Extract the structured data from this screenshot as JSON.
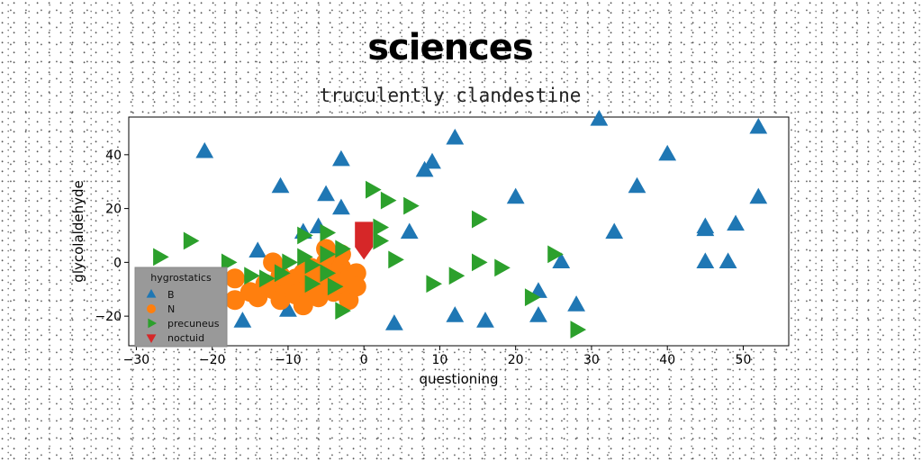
{
  "chart_data": {
    "type": "scatter",
    "title": "sciences",
    "subtitle": "truculently clandestine",
    "xlabel": "questioning",
    "ylabel": "glycolaldehyde",
    "xlim": [
      -31,
      56
    ],
    "ylim": [
      -31,
      54
    ],
    "xticks": [
      -30,
      -20,
      -10,
      0,
      10,
      20,
      30,
      40,
      50
    ],
    "yticks": [
      -20,
      0,
      20,
      40
    ],
    "grid": false,
    "legend": {
      "title": "hygrostatics",
      "position": "lower-left"
    },
    "series": [
      {
        "name": "B",
        "marker": "triangle-up",
        "color": "#1f77b4",
        "points": [
          [
            -21,
            41
          ],
          [
            -11,
            28
          ],
          [
            -8,
            11
          ],
          [
            -5,
            25
          ],
          [
            -6,
            13
          ],
          [
            -3,
            38
          ],
          [
            -3,
            20
          ],
          [
            -14,
            4
          ],
          [
            -16,
            -22
          ],
          [
            -10,
            -18
          ],
          [
            4,
            -23
          ],
          [
            6,
            11
          ],
          [
            8,
            34
          ],
          [
            9,
            37
          ],
          [
            12,
            46
          ],
          [
            12,
            -20
          ],
          [
            16,
            -22
          ],
          [
            20,
            24
          ],
          [
            23,
            -11
          ],
          [
            23,
            -20
          ],
          [
            26,
            0
          ],
          [
            28,
            -16
          ],
          [
            31,
            53
          ],
          [
            33,
            11
          ],
          [
            36,
            28
          ],
          [
            40,
            40
          ],
          [
            45,
            13
          ],
          [
            45,
            12
          ],
          [
            45,
            0
          ],
          [
            48,
            0
          ],
          [
            49,
            14
          ],
          [
            52,
            50
          ],
          [
            52,
            24
          ]
        ]
      },
      {
        "name": "N",
        "marker": "circle",
        "color": "#ff7f0e",
        "points": [
          [
            -17,
            -6
          ],
          [
            -17,
            -14
          ],
          [
            -15,
            -11
          ],
          [
            -14,
            -13
          ],
          [
            -12,
            -10
          ],
          [
            -12,
            0
          ],
          [
            -11,
            -14
          ],
          [
            -10,
            -8
          ],
          [
            -9,
            -6
          ],
          [
            -9,
            -12
          ],
          [
            -8,
            -4
          ],
          [
            -7,
            -10
          ],
          [
            -7,
            -2
          ],
          [
            -6,
            -6
          ],
          [
            -6,
            -13
          ],
          [
            -5,
            0
          ],
          [
            -5,
            -8
          ],
          [
            -4,
            -4
          ],
          [
            -4,
            -11
          ],
          [
            -3,
            -2
          ],
          [
            -3,
            -8
          ],
          [
            -2,
            -6
          ],
          [
            -2,
            -14
          ],
          [
            -1,
            -4
          ],
          [
            -1,
            -9
          ],
          [
            -3,
            3
          ],
          [
            -5,
            5
          ],
          [
            -11,
            -5
          ],
          [
            -13,
            -8
          ],
          [
            -8,
            -16
          ]
        ]
      },
      {
        "name": "precuneus",
        "marker": "triangle-right",
        "color": "#2ca02c",
        "points": [
          [
            -27,
            2
          ],
          [
            -23,
            8
          ],
          [
            -18,
            0
          ],
          [
            -15,
            -5
          ],
          [
            -13,
            -6
          ],
          [
            -11,
            -4
          ],
          [
            -10,
            0
          ],
          [
            -8,
            10
          ],
          [
            -8,
            2
          ],
          [
            -7,
            -1
          ],
          [
            -7,
            -8
          ],
          [
            -5,
            11
          ],
          [
            -5,
            3
          ],
          [
            -5,
            -4
          ],
          [
            -4,
            -9
          ],
          [
            -3,
            5
          ],
          [
            -3,
            -18
          ],
          [
            1,
            27
          ],
          [
            2,
            13
          ],
          [
            2,
            8
          ],
          [
            3,
            23
          ],
          [
            4,
            1
          ],
          [
            6,
            21
          ],
          [
            9,
            -8
          ],
          [
            12,
            -5
          ],
          [
            15,
            16
          ],
          [
            15,
            0
          ],
          [
            18,
            -2
          ],
          [
            22,
            -13
          ],
          [
            25,
            3
          ],
          [
            28,
            -25
          ]
        ]
      },
      {
        "name": "noctuid",
        "marker": "triangle-down",
        "color": "#d62728",
        "points": [
          [
            0,
            5
          ]
        ]
      }
    ]
  }
}
